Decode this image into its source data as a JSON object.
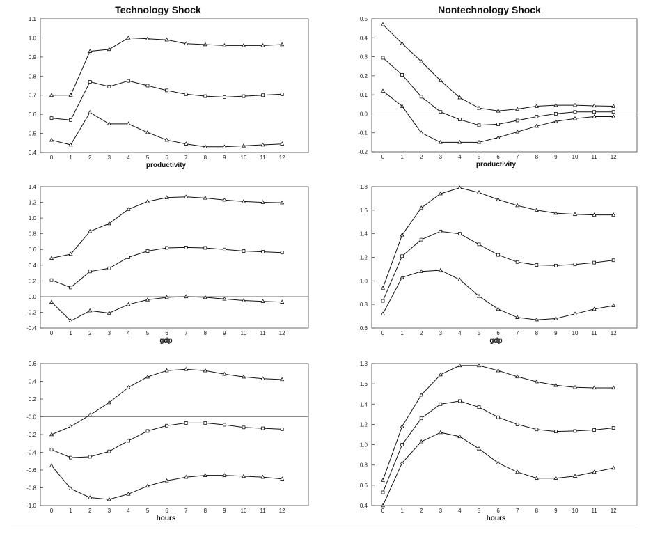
{
  "figure": {
    "column_titles": [
      "Technology Shock",
      "Nontechnology Shock"
    ]
  },
  "chart_data": [
    {
      "type": "line",
      "title": "Technology Shock",
      "xlabel": "productivity",
      "ylabel": "",
      "x": [
        0,
        1,
        2,
        3,
        4,
        5,
        6,
        7,
        8,
        9,
        10,
        11,
        12
      ],
      "ylim": [
        0.4,
        1.1
      ],
      "yticks": [
        "0.4",
        "0.5",
        "0.6",
        "0.7",
        "0.8",
        "0.9",
        "1.0",
        "1.1"
      ],
      "zero_line": false,
      "series": [
        {
          "name": "upper",
          "marker": "triangle",
          "values": [
            0.7,
            0.7,
            0.93,
            0.94,
            1.0,
            0.995,
            0.99,
            0.97,
            0.965,
            0.96,
            0.96,
            0.96,
            0.965
          ]
        },
        {
          "name": "estimate",
          "marker": "square",
          "values": [
            0.58,
            0.57,
            0.77,
            0.745,
            0.775,
            0.75,
            0.725,
            0.705,
            0.695,
            0.69,
            0.695,
            0.7,
            0.705
          ]
        },
        {
          "name": "lower",
          "marker": "triangle",
          "values": [
            0.465,
            0.44,
            0.61,
            0.55,
            0.55,
            0.505,
            0.465,
            0.445,
            0.43,
            0.43,
            0.435,
            0.44,
            0.445
          ]
        }
      ]
    },
    {
      "type": "line",
      "title": "Nontechnology Shock",
      "xlabel": "productivity",
      "ylabel": "",
      "x": [
        0,
        1,
        2,
        3,
        4,
        5,
        6,
        7,
        8,
        9,
        10,
        11,
        12
      ],
      "ylim": [
        -0.2,
        0.5
      ],
      "yticks": [
        "-0.2",
        "-0.1",
        "0.0",
        "0.1",
        "0.2",
        "0.3",
        "0.4",
        "0.5"
      ],
      "zero_line": true,
      "series": [
        {
          "name": "upper",
          "marker": "triangle",
          "values": [
            0.47,
            0.37,
            0.275,
            0.175,
            0.085,
            0.03,
            0.015,
            0.025,
            0.04,
            0.045,
            0.045,
            0.042,
            0.04
          ]
        },
        {
          "name": "estimate",
          "marker": "square",
          "values": [
            0.295,
            0.205,
            0.09,
            0.01,
            -0.03,
            -0.06,
            -0.055,
            -0.035,
            -0.015,
            0.0,
            0.01,
            0.01,
            0.01
          ]
        },
        {
          "name": "lower",
          "marker": "triangle",
          "values": [
            0.12,
            0.04,
            -0.1,
            -0.15,
            -0.15,
            -0.15,
            -0.125,
            -0.095,
            -0.065,
            -0.04,
            -0.025,
            -0.015,
            -0.015
          ]
        }
      ]
    },
    {
      "type": "line",
      "title": "Technology Shock",
      "xlabel": "gdp",
      "ylabel": "",
      "x": [
        0,
        1,
        2,
        3,
        4,
        5,
        6,
        7,
        8,
        9,
        10,
        11,
        12
      ],
      "ylim": [
        -0.4,
        1.4
      ],
      "yticks": [
        "-0.4",
        "-0.2",
        "0.0",
        "0.2",
        "0.4",
        "0.6",
        "0.8",
        "1.0",
        "1.2",
        "1.4"
      ],
      "zero_line": true,
      "series": [
        {
          "name": "upper",
          "marker": "triangle",
          "values": [
            0.49,
            0.54,
            0.83,
            0.93,
            1.11,
            1.21,
            1.26,
            1.27,
            1.255,
            1.23,
            1.21,
            1.2,
            1.195
          ]
        },
        {
          "name": "estimate",
          "marker": "square",
          "values": [
            0.21,
            0.115,
            0.32,
            0.36,
            0.5,
            0.58,
            0.62,
            0.625,
            0.62,
            0.6,
            0.58,
            0.57,
            0.56
          ]
        },
        {
          "name": "lower",
          "marker": "triangle",
          "values": [
            -0.07,
            -0.31,
            -0.18,
            -0.21,
            -0.1,
            -0.04,
            -0.01,
            0.0,
            -0.01,
            -0.03,
            -0.05,
            -0.06,
            -0.07
          ]
        }
      ]
    },
    {
      "type": "line",
      "title": "Nontechnology Shock",
      "xlabel": "gdp",
      "ylabel": "",
      "x": [
        0,
        1,
        2,
        3,
        4,
        5,
        6,
        7,
        8,
        9,
        10,
        11,
        12
      ],
      "ylim": [
        0.6,
        1.8
      ],
      "yticks": [
        "0.6",
        "0.8",
        "1.0",
        "1.2",
        "1.4",
        "1.6",
        "1.8"
      ],
      "zero_line": false,
      "series": [
        {
          "name": "upper",
          "marker": "triangle",
          "values": [
            0.94,
            1.39,
            1.62,
            1.74,
            1.79,
            1.75,
            1.69,
            1.64,
            1.6,
            1.575,
            1.565,
            1.56,
            1.56
          ]
        },
        {
          "name": "estimate",
          "marker": "square",
          "values": [
            0.83,
            1.21,
            1.35,
            1.42,
            1.4,
            1.31,
            1.22,
            1.16,
            1.135,
            1.13,
            1.14,
            1.155,
            1.175
          ]
        },
        {
          "name": "lower",
          "marker": "triangle",
          "values": [
            0.72,
            1.03,
            1.08,
            1.09,
            1.01,
            0.87,
            0.76,
            0.69,
            0.67,
            0.68,
            0.72,
            0.76,
            0.79
          ]
        }
      ]
    },
    {
      "type": "line",
      "title": "Technology Shock",
      "xlabel": "hours",
      "ylabel": "",
      "x": [
        0,
        1,
        2,
        3,
        4,
        5,
        6,
        7,
        8,
        9,
        10,
        11,
        12
      ],
      "ylim": [
        -1.0,
        0.6
      ],
      "yticks": [
        "-1.0",
        "-0.8",
        "-0.6",
        "-0.4",
        "-0.2",
        "-0.0",
        "0.2",
        "0.4",
        "0.6"
      ],
      "zero_line": true,
      "series": [
        {
          "name": "upper",
          "marker": "triangle",
          "values": [
            -0.2,
            -0.11,
            0.02,
            0.16,
            0.33,
            0.45,
            0.52,
            0.535,
            0.52,
            0.48,
            0.45,
            0.43,
            0.42
          ]
        },
        {
          "name": "estimate",
          "marker": "square",
          "values": [
            -0.37,
            -0.46,
            -0.45,
            -0.39,
            -0.27,
            -0.16,
            -0.1,
            -0.07,
            -0.07,
            -0.09,
            -0.12,
            -0.13,
            -0.14
          ]
        },
        {
          "name": "lower",
          "marker": "triangle",
          "values": [
            -0.55,
            -0.81,
            -0.91,
            -0.93,
            -0.87,
            -0.78,
            -0.72,
            -0.68,
            -0.66,
            -0.66,
            -0.67,
            -0.68,
            -0.7
          ]
        }
      ]
    },
    {
      "type": "line",
      "title": "Nontechnology Shock",
      "xlabel": "hours",
      "ylabel": "",
      "x": [
        0,
        1,
        2,
        3,
        4,
        5,
        6,
        7,
        8,
        9,
        10,
        11,
        12
      ],
      "ylim": [
        0.4,
        1.8
      ],
      "yticks": [
        "0.4",
        "0.6",
        "0.8",
        "1.0",
        "1.2",
        "1.4",
        "1.6",
        "1.8"
      ],
      "zero_line": false,
      "series": [
        {
          "name": "upper",
          "marker": "triangle",
          "values": [
            0.65,
            1.18,
            1.49,
            1.69,
            1.78,
            1.78,
            1.73,
            1.67,
            1.62,
            1.585,
            1.565,
            1.56,
            1.56
          ]
        },
        {
          "name": "estimate",
          "marker": "square",
          "values": [
            0.53,
            1.0,
            1.26,
            1.4,
            1.43,
            1.37,
            1.27,
            1.2,
            1.15,
            1.13,
            1.135,
            1.145,
            1.165
          ]
        },
        {
          "name": "lower",
          "marker": "triangle",
          "values": [
            0.4,
            0.82,
            1.03,
            1.12,
            1.08,
            0.96,
            0.82,
            0.73,
            0.67,
            0.67,
            0.69,
            0.73,
            0.77
          ]
        }
      ]
    }
  ]
}
